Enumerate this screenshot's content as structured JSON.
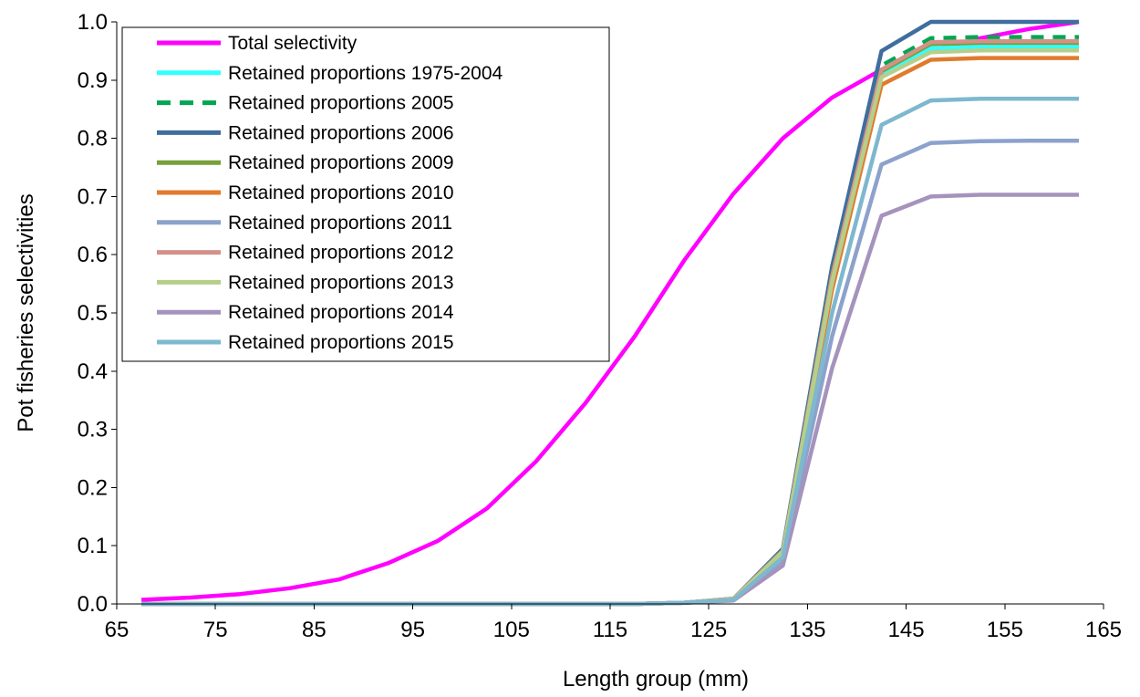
{
  "chart_data": {
    "type": "line",
    "title": "",
    "xlabel": "Length group (mm)",
    "ylabel": "Pot fisheries selectivities",
    "xlim": [
      65,
      165
    ],
    "ylim": [
      0,
      1.0
    ],
    "xticks": [
      65,
      75,
      85,
      95,
      105,
      115,
      125,
      135,
      145,
      155,
      165
    ],
    "yticks": [
      0.0,
      0.1,
      0.2,
      0.3,
      0.4,
      0.5,
      0.6,
      0.7,
      0.8,
      0.9,
      1.0
    ],
    "yticks_labels": [
      "0.0",
      "0.1",
      "0.2",
      "0.3",
      "0.4",
      "0.5",
      "0.6",
      "0.7",
      "0.8",
      "0.9",
      "1.0"
    ],
    "xticks_labels": [
      "65",
      "75",
      "85",
      "95",
      "105",
      "115",
      "125",
      "135",
      "145",
      "155",
      "165"
    ],
    "grid": false,
    "legend_position": "top-left",
    "x": [
      67.5,
      72.5,
      77.5,
      82.5,
      87.5,
      92.5,
      97.5,
      102.5,
      107.5,
      112.5,
      117.5,
      122.5,
      127.5,
      132.5,
      137.5,
      142.5,
      147.5,
      152.5,
      157.5,
      162.5
    ],
    "series": [
      {
        "name": "Total selectivity",
        "color": "#ff00ff",
        "dash": "",
        "values": [
          0.007,
          0.011,
          0.017,
          0.027,
          0.042,
          0.07,
          0.108,
          0.164,
          0.245,
          0.345,
          0.46,
          0.59,
          0.705,
          0.8,
          0.87,
          0.918,
          0.95,
          0.972,
          0.988,
          1.0
        ]
      },
      {
        "name": "Retained proportions 1975-2004",
        "color": "#33ffff",
        "dash": "",
        "values": [
          0,
          0,
          0,
          0,
          0,
          0,
          0,
          0,
          0,
          0,
          0,
          0.002,
          0.008,
          0.085,
          0.55,
          0.91,
          0.955,
          0.957,
          0.957,
          0.957
        ]
      },
      {
        "name": "Retained proportions 2005",
        "color": "#00a651",
        "dash": "14,10",
        "values": [
          0,
          0,
          0,
          0,
          0,
          0,
          0,
          0,
          0,
          0,
          0,
          0.002,
          0.008,
          0.09,
          0.56,
          0.925,
          0.972,
          0.974,
          0.974,
          0.974
        ]
      },
      {
        "name": "Retained proportions 2006",
        "color": "#3f6e9e",
        "dash": "",
        "values": [
          0,
          0,
          0,
          0,
          0,
          0,
          0,
          0,
          0,
          0,
          0,
          0.002,
          0.009,
          0.095,
          0.58,
          0.95,
          1.0,
          1.0,
          1.0,
          1.0
        ]
      },
      {
        "name": "Retained proportions 2009",
        "color": "#77a03a",
        "dash": "",
        "values": [
          0,
          0,
          0,
          0,
          0,
          0,
          0,
          0,
          0,
          0,
          0,
          0.002,
          0.009,
          0.092,
          0.565,
          0.915,
          0.962,
          0.964,
          0.964,
          0.964
        ]
      },
      {
        "name": "Retained proportions 2010",
        "color": "#e07b2e",
        "dash": "",
        "values": [
          0,
          0,
          0,
          0,
          0,
          0,
          0,
          0,
          0,
          0,
          0,
          0.002,
          0.008,
          0.088,
          0.54,
          0.892,
          0.935,
          0.938,
          0.938,
          0.938
        ]
      },
      {
        "name": "Retained proportions 2011",
        "color": "#8ca2cc",
        "dash": "",
        "values": [
          0,
          0,
          0,
          0,
          0,
          0,
          0,
          0,
          0,
          0,
          0,
          0.002,
          0.007,
          0.075,
          0.46,
          0.755,
          0.792,
          0.795,
          0.796,
          0.796
        ]
      },
      {
        "name": "Retained proportions 2012",
        "color": "#d4918a",
        "dash": "",
        "values": [
          0,
          0,
          0,
          0,
          0,
          0,
          0,
          0,
          0,
          0,
          0,
          0.002,
          0.009,
          0.091,
          0.562,
          0.918,
          0.965,
          0.967,
          0.967,
          0.967
        ]
      },
      {
        "name": "Retained proportions 2013",
        "color": "#b5cf8a",
        "dash": "",
        "values": [
          0,
          0,
          0,
          0,
          0,
          0,
          0,
          0,
          0,
          0,
          0,
          0.002,
          0.008,
          0.09,
          0.553,
          0.905,
          0.948,
          0.951,
          0.951,
          0.951
        ]
      },
      {
        "name": "Retained proportions 2014",
        "color": "#a593bd",
        "dash": "",
        "values": [
          0,
          0,
          0,
          0,
          0,
          0,
          0,
          0,
          0,
          0,
          0,
          0.002,
          0.006,
          0.066,
          0.405,
          0.667,
          0.7,
          0.703,
          0.703,
          0.703
        ]
      },
      {
        "name": "Retained proportions 2015",
        "color": "#7eb8cf",
        "dash": "",
        "values": [
          0,
          0,
          0,
          0,
          0,
          0,
          0,
          0,
          0,
          0,
          0,
          0.002,
          0.007,
          0.08,
          0.5,
          0.823,
          0.865,
          0.868,
          0.868,
          0.868
        ]
      }
    ]
  }
}
